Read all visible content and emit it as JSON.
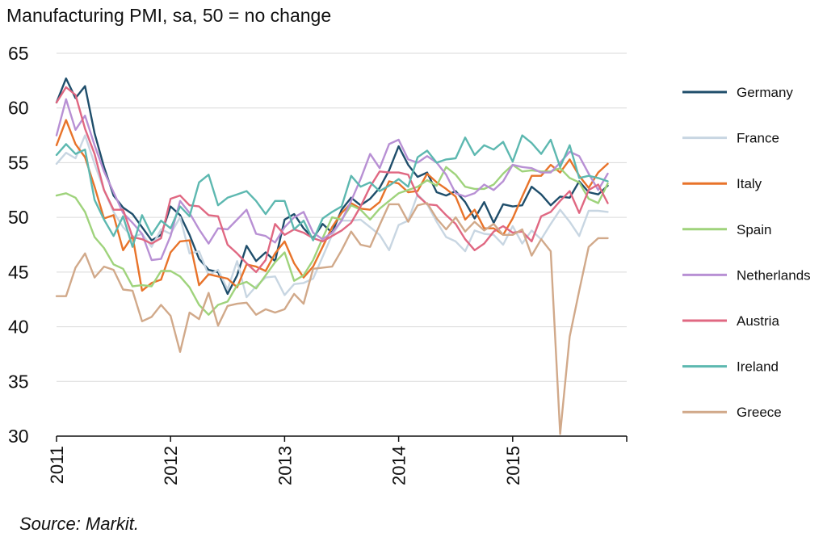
{
  "chart_data": {
    "type": "line",
    "title": "Manufacturing PMI, sa, 50 = no change",
    "source": "Source: Markit.",
    "xlabel": "",
    "ylabel": "",
    "ylim": [
      30,
      65
    ],
    "yticks": [
      "30",
      "35",
      "40",
      "45",
      "50",
      "55",
      "60",
      "65"
    ],
    "xticks": [
      "2011",
      "2012",
      "2013",
      "2014",
      "2015"
    ],
    "x_start": "2011-01",
    "x": [
      "2011-01",
      "2011-02",
      "2011-03",
      "2011-04",
      "2011-05",
      "2011-06",
      "2011-07",
      "2011-08",
      "2011-09",
      "2011-10",
      "2011-11",
      "2011-12",
      "2012-01",
      "2012-02",
      "2012-03",
      "2012-04",
      "2012-05",
      "2012-06",
      "2012-07",
      "2012-08",
      "2012-09",
      "2012-10",
      "2012-11",
      "2012-12",
      "2013-01",
      "2013-02",
      "2013-03",
      "2013-04",
      "2013-05",
      "2013-06",
      "2013-07",
      "2013-08",
      "2013-09",
      "2013-10",
      "2013-11",
      "2013-12",
      "2014-01",
      "2014-02",
      "2014-03",
      "2014-04",
      "2014-05",
      "2014-06",
      "2014-07",
      "2014-08",
      "2014-09",
      "2014-10",
      "2014-11",
      "2014-12",
      "2015-01",
      "2015-02",
      "2015-03",
      "2015-04",
      "2015-05",
      "2015-06",
      "2015-07",
      "2015-08",
      "2015-09",
      "2015-10",
      "2015-11"
    ],
    "grid": true,
    "legend_position": "right",
    "series": [
      {
        "name": "Germany",
        "color": "#1f4e6b",
        "values": [
          60.5,
          62.7,
          60.9,
          62.0,
          57.7,
          54.6,
          52.0,
          50.9,
          50.3,
          49.1,
          47.9,
          48.4,
          51.0,
          50.2,
          48.4,
          46.2,
          45.2,
          45.0,
          43.0,
          44.7,
          47.4,
          46.0,
          46.8,
          46.0,
          49.8,
          50.3,
          49.0,
          48.1,
          49.4,
          48.6,
          50.7,
          51.8,
          51.1,
          51.7,
          52.7,
          54.3,
          56.5,
          54.8,
          53.7,
          54.1,
          52.3,
          52.0,
          52.4,
          51.4,
          49.9,
          51.4,
          49.5,
          51.2,
          51.0,
          51.1,
          52.8,
          52.1,
          51.1,
          51.9,
          51.8,
          53.3,
          52.3,
          52.1,
          52.9
        ]
      },
      {
        "name": "France",
        "color": "#c8d6e2",
        "values": [
          54.9,
          55.9,
          55.4,
          57.5,
          54.9,
          52.5,
          50.5,
          49.1,
          48.2,
          48.5,
          47.3,
          48.9,
          48.5,
          50.0,
          46.7,
          46.9,
          44.7,
          45.2,
          43.4,
          46.0,
          42.7,
          43.7,
          44.5,
          44.6,
          42.9,
          43.9,
          44.0,
          44.4,
          46.4,
          48.4,
          49.7,
          49.7,
          49.8,
          49.1,
          48.4,
          47.0,
          49.3,
          49.7,
          52.1,
          51.2,
          49.6,
          48.2,
          47.8,
          46.9,
          48.8,
          48.5,
          48.4,
          47.5,
          49.2,
          47.6,
          48.8,
          48.0,
          49.4,
          50.7,
          49.6,
          48.3,
          50.6,
          50.6,
          50.5
        ]
      },
      {
        "name": "Italy",
        "color": "#e8732a",
        "values": [
          56.6,
          58.9,
          56.7,
          55.5,
          52.8,
          49.9,
          50.2,
          47.0,
          48.3,
          43.3,
          44.0,
          44.3,
          46.8,
          47.8,
          47.9,
          43.8,
          44.8,
          44.6,
          44.4,
          43.6,
          45.7,
          45.5,
          45.1,
          46.7,
          47.8,
          45.8,
          44.5,
          45.5,
          47.3,
          49.1,
          50.4,
          51.3,
          50.8,
          50.7,
          51.4,
          53.3,
          53.1,
          52.3,
          52.4,
          54.0,
          53.2,
          52.6,
          51.9,
          49.8,
          50.7,
          49.0,
          49.0,
          48.4,
          49.9,
          51.9,
          53.8,
          53.8,
          54.8,
          54.1,
          55.3,
          53.8,
          52.7,
          54.1,
          54.9
        ]
      },
      {
        "name": "Spain",
        "color": "#9fd37c",
        "values": [
          52.0,
          52.2,
          51.8,
          50.5,
          48.2,
          47.2,
          45.7,
          45.3,
          43.7,
          43.8,
          43.7,
          45.1,
          45.1,
          44.6,
          43.6,
          42.0,
          41.1,
          42.0,
          42.3,
          43.8,
          44.1,
          43.5,
          44.7,
          45.9,
          46.8,
          44.2,
          44.7,
          46.1,
          48.1,
          50.0,
          49.8,
          51.1,
          50.7,
          49.8,
          50.8,
          51.5,
          52.2,
          52.5,
          52.8,
          53.4,
          52.9,
          54.6,
          53.9,
          52.8,
          52.6,
          52.6,
          53.0,
          54.0,
          54.8,
          54.2,
          54.3,
          54.2,
          54.2,
          54.5,
          53.6,
          53.2,
          51.7,
          51.3,
          53.1
        ]
      },
      {
        "name": "Netherlands",
        "color": "#b890d4",
        "values": [
          57.5,
          60.8,
          58.0,
          59.3,
          56.6,
          54.2,
          52.3,
          50.4,
          49.5,
          48.5,
          46.1,
          46.2,
          48.3,
          51.5,
          50.4,
          48.9,
          47.6,
          49.0,
          48.9,
          49.8,
          50.7,
          48.5,
          48.3,
          47.7,
          49.1,
          50.0,
          50.5,
          48.6,
          48.0,
          48.6,
          49.7,
          51.5,
          53.5,
          55.8,
          54.5,
          56.7,
          57.1,
          55.3,
          55.0,
          55.6,
          55.0,
          53.9,
          52.2,
          51.9,
          52.2,
          53.0,
          52.5,
          53.3,
          54.8,
          54.6,
          54.5,
          54.1,
          54.1,
          55.0,
          56.0,
          55.6,
          54.0,
          52.5,
          54.0
        ]
      },
      {
        "name": "Austria",
        "color": "#e06882",
        "values": [
          60.5,
          61.9,
          61.2,
          58.1,
          55.8,
          52.5,
          50.7,
          50.7,
          48.2,
          48.0,
          47.6,
          48.1,
          51.7,
          52.0,
          51.1,
          51.0,
          50.2,
          50.1,
          47.5,
          46.7,
          45.8,
          45.0,
          46.1,
          49.4,
          48.4,
          48.9,
          48.6,
          48.1,
          47.8,
          48.3,
          48.8,
          49.5,
          51.0,
          52.8,
          54.2,
          54.1,
          54.1,
          53.9,
          52.0,
          51.2,
          51.1,
          50.2,
          49.4,
          48.0,
          47.0,
          47.6,
          48.7,
          49.2,
          48.6,
          48.7,
          47.8,
          50.1,
          50.5,
          51.5,
          52.4,
          50.4,
          52.5,
          53.0,
          51.3
        ]
      },
      {
        "name": "Ireland",
        "color": "#5db8b0",
        "values": [
          55.7,
          56.7,
          55.8,
          56.2,
          51.6,
          49.8,
          48.3,
          50.1,
          47.3,
          50.2,
          48.4,
          49.7,
          49.0,
          51.0,
          50.1,
          53.2,
          53.9,
          51.1,
          51.8,
          52.1,
          52.4,
          51.5,
          50.3,
          51.5,
          51.5,
          48.9,
          49.7,
          47.9,
          49.9,
          50.5,
          51.0,
          53.8,
          52.8,
          53.2,
          52.4,
          52.9,
          53.5,
          52.8,
          55.5,
          56.1,
          55.0,
          55.3,
          55.4,
          57.3,
          55.7,
          56.6,
          56.2,
          56.9,
          55.1,
          57.5,
          56.8,
          55.8,
          57.1,
          54.6,
          56.6,
          53.6,
          53.8,
          53.6,
          53.3
        ]
      },
      {
        "name": "Greece",
        "color": "#d1a98a",
        "values": [
          42.8,
          42.8,
          45.4,
          46.7,
          44.5,
          45.5,
          45.2,
          43.4,
          43.3,
          40.5,
          40.9,
          42.0,
          41.0,
          37.7,
          41.3,
          40.7,
          43.1,
          40.1,
          41.9,
          42.1,
          42.2,
          41.1,
          41.6,
          41.3,
          41.6,
          43.0,
          42.1,
          45.3,
          45.4,
          45.5,
          47.0,
          48.7,
          47.5,
          47.3,
          49.3,
          51.2,
          51.2,
          49.6,
          51.1,
          51.3,
          49.9,
          48.9,
          50.0,
          48.7,
          49.6,
          48.8,
          49.4,
          48.4,
          48.4,
          48.9,
          46.5,
          48.0,
          46.9,
          30.2,
          39.1,
          43.3,
          47.3,
          48.1,
          48.1
        ]
      }
    ]
  }
}
